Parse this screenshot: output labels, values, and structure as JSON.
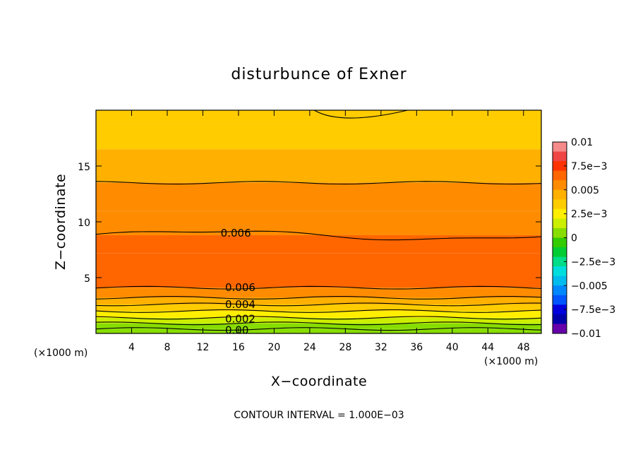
{
  "chart_data": {
    "type": "contour",
    "title": "disturbunce of Exner",
    "xlabel": "X−coordinate",
    "ylabel": "Z−coordinate",
    "x_unit": "(×1000 m)",
    "y_unit": "(×1000 m)",
    "xlim": [
      0,
      50
    ],
    "ylim": [
      0,
      20
    ],
    "xticks": [
      4,
      8,
      12,
      16,
      20,
      24,
      28,
      32,
      36,
      40,
      44,
      48
    ],
    "yticks": [
      5,
      10,
      15
    ],
    "contour_interval_text": "CONTOUR INTERVAL = 1.000E−03",
    "colorbar": {
      "min": -0.01,
      "max": 0.01,
      "tick_values": [
        0.01,
        0.0075,
        0.005,
        0.0025,
        0,
        -0.0025,
        -0.005,
        -0.0075,
        -0.01
      ],
      "tick_labels": [
        "0.01",
        "7.5e−3",
        "0.005",
        "2.5e−3",
        "0",
        "−2.5e−3",
        "−0.005",
        "−7.5e−3",
        "−0.01"
      ],
      "colors": [
        "#f58a8a",
        "#f04545",
        "#ff3300",
        "#ff6600",
        "#ff8c00",
        "#ffb000",
        "#ffcc00",
        "#ffee00",
        "#ccee00",
        "#88dd00",
        "#33cc00",
        "#00cc33",
        "#00dd88",
        "#00dddd",
        "#00bbee",
        "#0088ff",
        "#0055ff",
        "#0000dd",
        "#0000aa",
        "#6600aa"
      ]
    },
    "contour_labels": [
      {
        "text": "0.006",
        "x": 14,
        "z": 9.0
      },
      {
        "text": "0.006",
        "x": 14.5,
        "z": 4.1
      },
      {
        "text": "0.004",
        "x": 14.5,
        "z": 2.6
      },
      {
        "text": "0.002",
        "x": 14.5,
        "z": 1.3
      },
      {
        "text": "0.00",
        "x": 14.5,
        "z": 0.3
      }
    ],
    "field_bands": [
      {
        "z": [
          18.8,
          20
        ],
        "value": 0.0032
      },
      {
        "z": [
          16.5,
          18.8
        ],
        "value": 0.0036
      },
      {
        "z": [
          13.5,
          16.5
        ],
        "value": 0.0044
      },
      {
        "z": [
          11,
          13.5
        ],
        "value": 0.0052
      },
      {
        "z": [
          8.8,
          11
        ],
        "value": 0.0058
      },
      {
        "z": [
          7.2,
          8.8
        ],
        "value": 0.0064
      },
      {
        "z": [
          5,
          7.2
        ],
        "value": 0.0069
      },
      {
        "z": [
          4.1,
          5
        ],
        "value": 0.0063
      },
      {
        "z": [
          3.2,
          4.1
        ],
        "value": 0.0055
      },
      {
        "z": [
          2.6,
          3.2
        ],
        "value": 0.0045
      },
      {
        "z": [
          2.0,
          2.6
        ],
        "value": 0.0034
      },
      {
        "z": [
          1.4,
          2.0
        ],
        "value": 0.0025
      },
      {
        "z": [
          0.9,
          1.4
        ],
        "value": 0.0016
      },
      {
        "z": [
          0.4,
          0.9
        ],
        "value": 0.0008
      },
      {
        "z": [
          0,
          0.4
        ],
        "value": 0.0002
      }
    ]
  }
}
